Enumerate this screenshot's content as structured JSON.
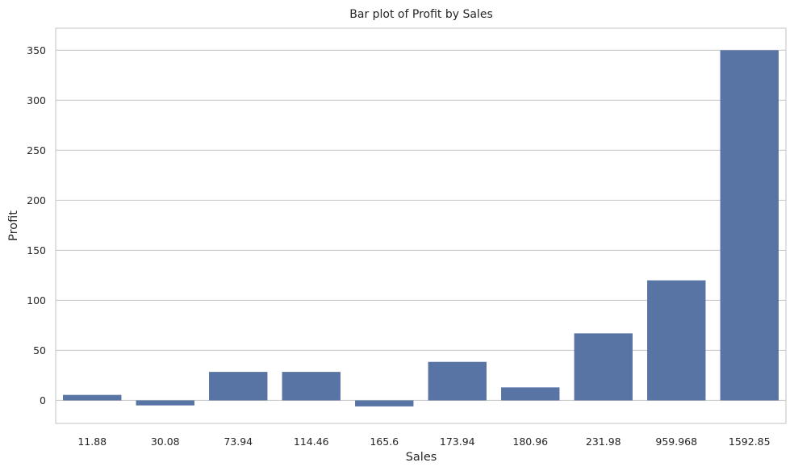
{
  "chart_data": {
    "type": "bar",
    "title": "Bar plot of Profit by Sales",
    "xlabel": "Sales",
    "ylabel": "Profit",
    "categories": [
      "11.88",
      "30.08",
      "73.94",
      "114.46",
      "165.6",
      "173.94",
      "180.96",
      "231.98",
      "959.968",
      "1592.85"
    ],
    "values": [
      5.5,
      -5.0,
      28.5,
      28.5,
      -6.0,
      38.5,
      13.0,
      67.0,
      120.0,
      350.0
    ],
    "ylim": [
      -23,
      372
    ],
    "yticks": [
      0,
      50,
      100,
      150,
      200,
      250,
      300,
      350
    ],
    "grid": "horizontal",
    "bar_color": "#5874a4",
    "grid_color": "#cccccc"
  }
}
